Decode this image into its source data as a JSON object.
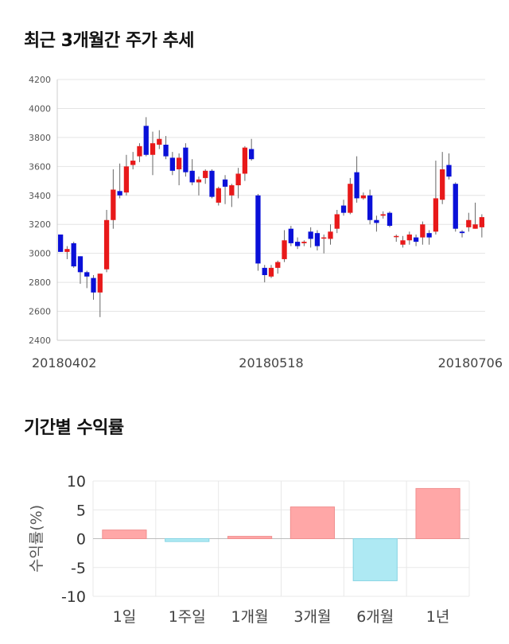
{
  "sections": {
    "price_title": "최근 3개월간 주가 추세",
    "returns_title": "기간별 수익률"
  },
  "chart_data": [
    {
      "type": "candlestick",
      "title": "최근 3개월간 주가 추세",
      "ylim": [
        2400,
        4200
      ],
      "yticks": [
        "4200",
        "4000",
        "3800",
        "3600",
        "3400",
        "3200",
        "3000",
        "2800",
        "2600",
        "2400"
      ],
      "xticks": [
        {
          "index": 0,
          "label": "20180402"
        },
        {
          "index": 32,
          "label": "20180518"
        },
        {
          "index": 63,
          "label": "20180706"
        }
      ],
      "grid": true,
      "up_color": "#e8191a",
      "down_color": "#0a10d8",
      "candles": [
        [
          3130,
          3010,
          3130,
          3010
        ],
        [
          3010,
          3030,
          3050,
          2960
        ],
        [
          3070,
          2910,
          3080,
          2900
        ],
        [
          2980,
          2870,
          2980,
          2790
        ],
        [
          2870,
          2840,
          2880,
          2760
        ],
        [
          2830,
          2730,
          2850,
          2680
        ],
        [
          2730,
          2860,
          2860,
          2560
        ],
        [
          2890,
          3230,
          3300,
          2870
        ],
        [
          3230,
          3440,
          3580,
          3170
        ],
        [
          3430,
          3400,
          3620,
          3380
        ],
        [
          3420,
          3600,
          3680,
          3400
        ],
        [
          3610,
          3640,
          3700,
          3580
        ],
        [
          3670,
          3740,
          3760,
          3630
        ],
        [
          3880,
          3680,
          3940,
          3670
        ],
        [
          3680,
          3760,
          3840,
          3540
        ],
        [
          3750,
          3790,
          3850,
          3720
        ],
        [
          3750,
          3670,
          3810,
          3650
        ],
        [
          3660,
          3570,
          3700,
          3540
        ],
        [
          3580,
          3660,
          3690,
          3470
        ],
        [
          3730,
          3560,
          3760,
          3530
        ],
        [
          3570,
          3490,
          3650,
          3470
        ],
        [
          3490,
          3510,
          3530,
          3400
        ],
        [
          3520,
          3570,
          3580,
          3480
        ],
        [
          3570,
          3390,
          3580,
          3380
        ],
        [
          3350,
          3450,
          3460,
          3330
        ],
        [
          3510,
          3460,
          3540,
          3340
        ],
        [
          3400,
          3470,
          3480,
          3320
        ],
        [
          3470,
          3550,
          3590,
          3380
        ],
        [
          3550,
          3730,
          3740,
          3500
        ],
        [
          3720,
          3650,
          3790,
          3640
        ],
        [
          3400,
          2930,
          3410,
          2880
        ],
        [
          2900,
          2850,
          2920,
          2800
        ],
        [
          2840,
          2900,
          2920,
          2830
        ],
        [
          2900,
          2940,
          2950,
          2860
        ],
        [
          2960,
          3090,
          3160,
          2940
        ],
        [
          3170,
          3070,
          3190,
          3050
        ],
        [
          3080,
          3050,
          3110,
          3030
        ],
        [
          3070,
          3080,
          3090,
          3050
        ],
        [
          3150,
          3100,
          3180,
          3040
        ],
        [
          3140,
          3050,
          3160,
          3020
        ],
        [
          3110,
          3110,
          3130,
          3000
        ],
        [
          3100,
          3150,
          3200,
          3060
        ],
        [
          3170,
          3270,
          3300,
          3140
        ],
        [
          3330,
          3280,
          3370,
          3260
        ],
        [
          3280,
          3480,
          3520,
          3270
        ],
        [
          3560,
          3380,
          3670,
          3350
        ],
        [
          3380,
          3400,
          3420,
          3370
        ],
        [
          3400,
          3230,
          3440,
          3200
        ],
        [
          3230,
          3210,
          3260,
          3150
        ],
        [
          3260,
          3270,
          3290,
          3240
        ],
        [
          3280,
          3190,
          3290,
          3180
        ],
        [
          3120,
          3120,
          3130,
          3080
        ],
        [
          3060,
          3090,
          3120,
          3040
        ],
        [
          3090,
          3130,
          3150,
          3060
        ],
        [
          3110,
          3080,
          3130,
          3050
        ],
        [
          3110,
          3200,
          3220,
          3060
        ],
        [
          3140,
          3110,
          3160,
          3060
        ],
        [
          3150,
          3380,
          3640,
          3130
        ],
        [
          3370,
          3580,
          3700,
          3340
        ],
        [
          3610,
          3530,
          3690,
          3510
        ],
        [
          3480,
          3170,
          3490,
          3150
        ],
        [
          3150,
          3140,
          3160,
          3110
        ],
        [
          3180,
          3230,
          3280,
          3150
        ],
        [
          3170,
          3200,
          3350,
          3170
        ],
        [
          3180,
          3250,
          3270,
          3110
        ]
      ]
    },
    {
      "type": "bar",
      "title": "기간별 수익률",
      "ylabel": "수익률(%)",
      "ylim": [
        -10,
        10
      ],
      "yticks": [
        "10",
        "5",
        "0",
        "-5",
        "-10"
      ],
      "categories": [
        "1일",
        "1주일",
        "1개월",
        "3개월",
        "6개월",
        "1년"
      ],
      "values": [
        1.5,
        -0.5,
        0.4,
        5.5,
        -7.3,
        8.7
      ],
      "positive_color": "#ffa7a7",
      "negative_color": "#aee9f3",
      "grid": true
    }
  ]
}
